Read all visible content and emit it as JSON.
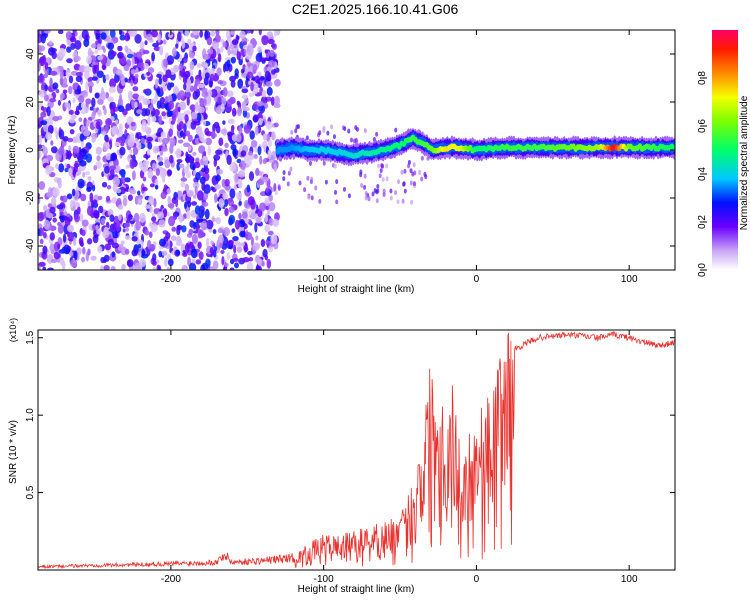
{
  "title": "C2E1.2025.166.10.41.G06",
  "chart_data": [
    {
      "type": "heatmap",
      "xlabel": "Height of straight line (km)",
      "ylabel": "Frequency (Hz)",
      "xlim": [
        -287,
        130
      ],
      "ylim": [
        -50,
        50
      ],
      "x_ticks": [
        -200,
        -100,
        0,
        100
      ],
      "y_ticks": [
        -40,
        -20,
        0,
        20,
        40
      ],
      "colorbar": {
        "label": "Normalized spectral amplitude",
        "range": [
          0,
          1
        ],
        "ticks": [
          0.0,
          0.2,
          0.4,
          0.6,
          0.8
        ]
      },
      "ridge": {
        "x": [
          -130,
          -120,
          -110,
          -100,
          -90,
          -80,
          -70,
          -60,
          -50,
          -42,
          -35,
          -28,
          -20,
          -10,
          0,
          20,
          40,
          60,
          80,
          90,
          100,
          130
        ],
        "freq": [
          0,
          1,
          0,
          0,
          -1,
          -2,
          -1,
          0,
          2,
          5,
          3,
          0,
          1,
          1,
          0,
          1,
          1,
          1,
          1,
          1,
          1,
          1
        ],
        "amplitude": [
          0.35,
          0.35,
          0.38,
          0.4,
          0.4,
          0.42,
          0.45,
          0.48,
          0.5,
          0.55,
          0.55,
          0.6,
          0.75,
          0.7,
          0.5,
          0.55,
          0.55,
          0.6,
          0.65,
          0.95,
          0.6,
          0.5
        ]
      },
      "noise_region_x": [
        -287,
        -130
      ]
    },
    {
      "type": "line",
      "xlabel": "Height of straight line (km)",
      "ylabel": "SNR (10 * v/v)",
      "y_multiplier": "(x10⁴)",
      "xlim": [
        -287,
        130
      ],
      "ylim": [
        0,
        1.55
      ],
      "x_ticks": [
        -200,
        -100,
        0,
        100
      ],
      "y_ticks": [
        0.5,
        1.0,
        1.5
      ],
      "color": "#e8322e",
      "series": [
        {
          "x": [
            -287,
            -250,
            -200,
            -170,
            -165,
            -160,
            -140,
            -120,
            -110,
            -100,
            -90,
            -80,
            -70,
            -60,
            -50,
            -40,
            -35,
            -30,
            -25,
            -20,
            -15,
            -10,
            -5,
            0,
            5,
            10,
            15,
            20,
            30,
            40,
            60,
            80,
            90,
            100,
            110,
            120,
            130
          ],
          "values": [
            0.02,
            0.03,
            0.04,
            0.05,
            0.1,
            0.05,
            0.06,
            0.08,
            0.15,
            0.2,
            0.2,
            0.22,
            0.25,
            0.28,
            0.3,
            0.55,
            0.9,
            1.2,
            1.1,
            0.9,
            1.1,
            0.6,
            0.8,
            0.9,
            0.95,
            1.0,
            1.2,
            1.4,
            1.45,
            1.5,
            1.52,
            1.5,
            1.52,
            1.5,
            1.47,
            1.45,
            1.47
          ]
        }
      ]
    }
  ]
}
